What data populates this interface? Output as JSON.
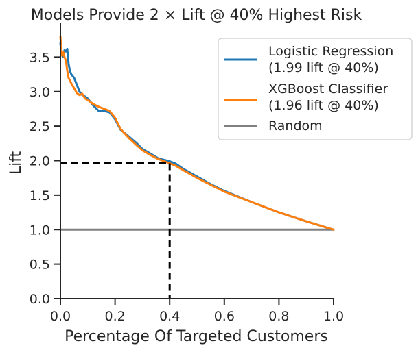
{
  "chart_data": {
    "type": "line",
    "title": "Models Provide 2 ×  Lift @ 40% Highest Risk",
    "xlabel": "Percentage Of Targeted Customers",
    "ylabel": "Lift",
    "xlim": [
      0,
      1
    ],
    "ylim": [
      0,
      4
    ],
    "x_ticks": [
      "0.0",
      "0.2",
      "0.4",
      "0.6",
      "0.8",
      "1.0"
    ],
    "y_ticks": [
      "0.0",
      "0.5",
      "1.0",
      "1.5",
      "2.0",
      "2.5",
      "3.0",
      "3.5"
    ],
    "legend_position": "top-right",
    "grid": false,
    "series": [
      {
        "name": "Logistic Regression",
        "name_line2": "(1.99 lift @ 40%)",
        "color": "#1f77b4",
        "x": [
          0.0,
          0.005,
          0.01,
          0.015,
          0.02,
          0.025,
          0.03,
          0.035,
          0.04,
          0.05,
          0.06,
          0.07,
          0.08,
          0.09,
          0.1,
          0.12,
          0.14,
          0.16,
          0.18,
          0.2,
          0.22,
          0.25,
          0.28,
          0.3,
          0.33,
          0.36,
          0.4,
          0.42,
          0.45,
          0.5,
          0.55,
          0.6,
          0.7,
          0.8,
          0.9,
          1.0
        ],
        "y": [
          3.7,
          3.55,
          3.5,
          3.6,
          3.58,
          3.62,
          3.4,
          3.3,
          3.25,
          3.2,
          3.1,
          3.0,
          2.95,
          2.93,
          2.9,
          2.8,
          2.72,
          2.72,
          2.7,
          2.6,
          2.45,
          2.35,
          2.25,
          2.17,
          2.1,
          2.03,
          1.99,
          1.96,
          1.88,
          1.77,
          1.66,
          1.56,
          1.4,
          1.25,
          1.12,
          1.0
        ]
      },
      {
        "name": "XGBoost Classifier",
        "name_line2": "(1.96 lift @ 40%)",
        "color": "#ff7f0e",
        "x": [
          0.0,
          0.003,
          0.006,
          0.01,
          0.015,
          0.02,
          0.025,
          0.03,
          0.04,
          0.05,
          0.06,
          0.07,
          0.08,
          0.09,
          0.1,
          0.12,
          0.14,
          0.16,
          0.18,
          0.2,
          0.22,
          0.25,
          0.28,
          0.3,
          0.33,
          0.36,
          0.4,
          0.42,
          0.45,
          0.5,
          0.55,
          0.6,
          0.7,
          0.8,
          0.9,
          1.0
        ],
        "y": [
          3.8,
          3.6,
          3.52,
          3.58,
          3.5,
          3.45,
          3.3,
          3.2,
          3.12,
          3.05,
          2.98,
          2.95,
          2.97,
          2.9,
          2.88,
          2.82,
          2.78,
          2.75,
          2.72,
          2.62,
          2.46,
          2.33,
          2.22,
          2.15,
          2.08,
          2.02,
          1.96,
          1.93,
          1.86,
          1.75,
          1.65,
          1.55,
          1.4,
          1.25,
          1.12,
          1.0
        ]
      },
      {
        "name": "Random",
        "color": "#808080",
        "x": [
          0.0,
          1.0
        ],
        "y": [
          1.0,
          1.0
        ]
      }
    ],
    "reference_lines": {
      "color": "#000000",
      "x": 0.4,
      "y": 1.96,
      "style": "dashed"
    }
  }
}
